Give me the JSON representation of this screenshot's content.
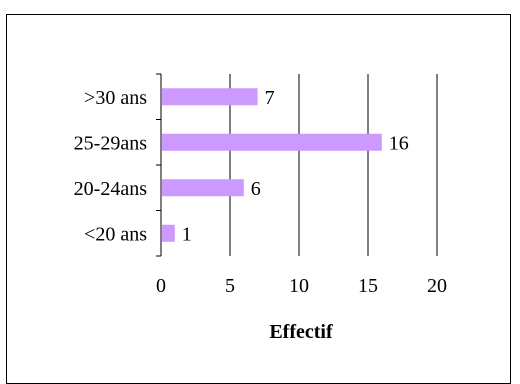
{
  "chart_data": {
    "type": "bar",
    "orientation": "horizontal",
    "categories": [
      ">30 ans",
      "25-29ans",
      "20-24ans",
      "<20 ans"
    ],
    "values": [
      7,
      16,
      6,
      1
    ],
    "title": "",
    "xlabel": "Effectif",
    "ylabel": "",
    "xlim": [
      0,
      20
    ],
    "x_ticks": [
      "0",
      "5",
      "10",
      "15",
      "20"
    ],
    "grid": "vertical",
    "legend": "none",
    "bar_color": "#cc99ff"
  }
}
